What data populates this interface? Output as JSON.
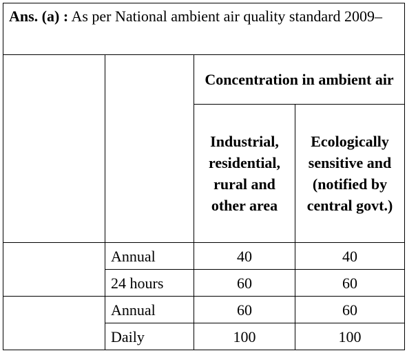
{
  "answer": {
    "label": "Ans. (a) :",
    "text": "As per National ambient air quality standard 2009–"
  },
  "table": {
    "group_header": "Concentration in ambient air",
    "columns": [
      "Industrial, residential, rural and other area",
      "Ecologically sensitive and (notified by central govt.)"
    ],
    "rows": [
      [
        "Annual",
        40,
        40
      ],
      [
        "24 hours",
        60,
        60
      ],
      [
        "Annual",
        60,
        60
      ],
      [
        "Daily",
        100,
        100
      ]
    ]
  }
}
